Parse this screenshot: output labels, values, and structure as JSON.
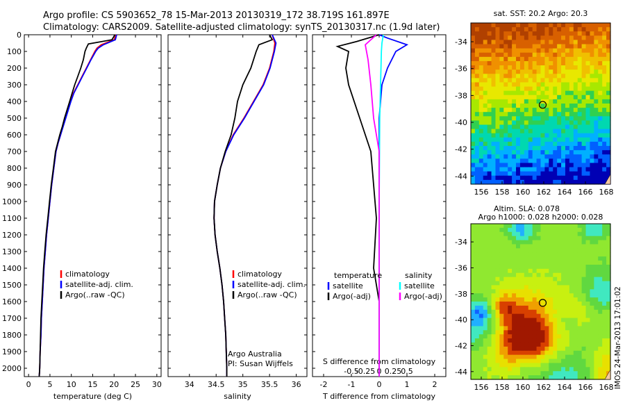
{
  "header": {
    "line1": "Argo profile: CS 5903652_78 15-Mar-2013 20130319_172 38.719S 161.897E",
    "line2": "Climatology: CARS2009. Satellite-adjusted climatology: synTS_20130317.nc (1.9d later)"
  },
  "colors": {
    "climatology": "#ff0000",
    "satellite": "#0000ff",
    "argo": "#000000",
    "salinity_sat": "#00ffff",
    "salinity_argo": "#ff00ff"
  },
  "depth_axis": {
    "ylim": [
      0,
      2050
    ],
    "ticks": [
      0,
      100,
      200,
      300,
      400,
      500,
      600,
      700,
      800,
      900,
      1000,
      1100,
      1200,
      1300,
      1400,
      1500,
      1600,
      1700,
      1800,
      1900,
      2000
    ]
  },
  "chart_data": [
    {
      "type": "line",
      "id": "temperature",
      "xlabel": "temperature (deg C)",
      "xlim": [
        -1,
        31
      ],
      "xticks": [
        0,
        5,
        10,
        15,
        20,
        25,
        30
      ],
      "legend": [
        "climatology",
        "satellite-adj. clim.",
        "Argo(..raw -QC)"
      ],
      "series": [
        {
          "name": "climatology",
          "key": "climatology",
          "points": [
            [
              20.5,
              0
            ],
            [
              20,
              30
            ],
            [
              17,
              60
            ],
            [
              16,
              80
            ],
            [
              15.5,
              100
            ],
            [
              14.5,
              150
            ],
            [
              13.5,
              200
            ],
            [
              12.5,
              250
            ],
            [
              11.5,
              300
            ],
            [
              10.5,
              350
            ],
            [
              9.8,
              400
            ],
            [
              9.2,
              450
            ],
            [
              8.6,
              500
            ],
            [
              8,
              550
            ],
            [
              7.5,
              600
            ],
            [
              6.9,
              650
            ],
            [
              6.4,
              700
            ],
            [
              5.9,
              800
            ],
            [
              5.4,
              900
            ],
            [
              5,
              1000
            ],
            [
              4.6,
              1100
            ],
            [
              4.2,
              1200
            ],
            [
              3.9,
              1300
            ],
            [
              3.6,
              1400
            ],
            [
              3.4,
              1500
            ],
            [
              3.2,
              1600
            ],
            [
              3,
              1700
            ],
            [
              2.9,
              1800
            ],
            [
              2.7,
              1900
            ],
            [
              2.6,
              2000
            ],
            [
              2.5,
              2050
            ]
          ]
        },
        {
          "name": "satellite-adj. clim.",
          "key": "satellite",
          "points": [
            [
              20.6,
              0
            ],
            [
              20.3,
              30
            ],
            [
              17.5,
              60
            ],
            [
              16.3,
              80
            ],
            [
              15.7,
              100
            ],
            [
              14.6,
              150
            ],
            [
              13.6,
              200
            ],
            [
              12.6,
              250
            ],
            [
              11.6,
              300
            ],
            [
              10.6,
              350
            ],
            [
              9.9,
              400
            ],
            [
              9.3,
              450
            ],
            [
              8.7,
              500
            ],
            [
              8.1,
              550
            ],
            [
              7.5,
              600
            ],
            [
              6.9,
              650
            ],
            [
              6.4,
              700
            ],
            [
              5.9,
              800
            ],
            [
              5.4,
              900
            ],
            [
              5,
              1000
            ],
            [
              4.6,
              1100
            ],
            [
              4.2,
              1200
            ],
            [
              3.9,
              1300
            ],
            [
              3.6,
              1400
            ],
            [
              3.4,
              1500
            ],
            [
              3.2,
              1600
            ],
            [
              3,
              1700
            ],
            [
              2.9,
              1800
            ],
            [
              2.7,
              1900
            ],
            [
              2.6,
              2000
            ],
            [
              2.5,
              2050
            ]
          ]
        },
        {
          "name": "Argo(..raw -QC)",
          "key": "argo",
          "points": [
            [
              20.2,
              0
            ],
            [
              19.5,
              30
            ],
            [
              14,
              55
            ],
            [
              13.5,
              80
            ],
            [
              13.2,
              100
            ],
            [
              12.8,
              150
            ],
            [
              12.2,
              200
            ],
            [
              11.5,
              250
            ],
            [
              10.8,
              300
            ],
            [
              10.2,
              350
            ],
            [
              9.6,
              400
            ],
            [
              9,
              450
            ],
            [
              8.4,
              500
            ],
            [
              7.9,
              550
            ],
            [
              7.3,
              600
            ],
            [
              6.8,
              650
            ],
            [
              6.3,
              700
            ],
            [
              5.8,
              800
            ],
            [
              5.3,
              900
            ],
            [
              4.9,
              1000
            ],
            [
              4.5,
              1100
            ],
            [
              4.1,
              1200
            ],
            [
              3.8,
              1300
            ],
            [
              3.5,
              1400
            ],
            [
              3.3,
              1500
            ],
            [
              3.1,
              1600
            ],
            [
              2.9,
              1700
            ],
            [
              2.8,
              1800
            ],
            [
              2.7,
              1900
            ],
            [
              2.6,
              2000
            ],
            [
              2.5,
              2050
            ]
          ]
        }
      ]
    },
    {
      "type": "line",
      "id": "salinity",
      "xlabel": "salinity",
      "xlim": [
        33.6,
        36.2
      ],
      "xticks": [
        34,
        34.5,
        35,
        35.5,
        36
      ],
      "xticklabels": [
        "34",
        "34.5",
        "35",
        "35.5",
        "36"
      ],
      "legend": [
        "climatology",
        "satellite-adj. clim.",
        "Argo(..raw -QC)"
      ],
      "annotation": [
        "Argo Australia",
        "PI: Susan Wijffels"
      ],
      "series": [
        {
          "name": "climatology",
          "key": "climatology",
          "points": [
            [
              35.55,
              0
            ],
            [
              35.6,
              50
            ],
            [
              35.58,
              100
            ],
            [
              35.5,
              200
            ],
            [
              35.38,
              300
            ],
            [
              35.2,
              400
            ],
            [
              35.02,
              500
            ],
            [
              34.82,
              600
            ],
            [
              34.68,
              700
            ],
            [
              34.58,
              800
            ],
            [
              34.52,
              900
            ],
            [
              34.47,
              1000
            ],
            [
              34.46,
              1100
            ],
            [
              34.48,
              1200
            ],
            [
              34.52,
              1300
            ],
            [
              34.57,
              1400
            ],
            [
              34.61,
              1500
            ],
            [
              34.64,
              1600
            ],
            [
              34.66,
              1700
            ],
            [
              34.68,
              1800
            ],
            [
              34.69,
              1900
            ],
            [
              34.7,
              2000
            ],
            [
              34.7,
              2050
            ]
          ]
        },
        {
          "name": "satellite-adj. clim.",
          "key": "satellite",
          "points": [
            [
              35.55,
              0
            ],
            [
              35.62,
              50
            ],
            [
              35.59,
              100
            ],
            [
              35.51,
              200
            ],
            [
              35.39,
              300
            ],
            [
              35.21,
              400
            ],
            [
              35.03,
              500
            ],
            [
              34.83,
              600
            ],
            [
              34.68,
              700
            ],
            [
              34.58,
              800
            ],
            [
              34.52,
              900
            ],
            [
              34.47,
              1000
            ],
            [
              34.46,
              1100
            ],
            [
              34.48,
              1200
            ],
            [
              34.52,
              1300
            ],
            [
              34.57,
              1400
            ],
            [
              34.61,
              1500
            ],
            [
              34.64,
              1600
            ],
            [
              34.66,
              1700
            ],
            [
              34.68,
              1800
            ],
            [
              34.69,
              1900
            ],
            [
              34.7,
              2000
            ],
            [
              34.7,
              2050
            ]
          ]
        },
        {
          "name": "Argo(..raw -QC)",
          "key": "argo",
          "points": [
            [
              35.5,
              0
            ],
            [
              35.55,
              30
            ],
            [
              35.3,
              60
            ],
            [
              35.25,
              100
            ],
            [
              35.15,
              200
            ],
            [
              35,
              300
            ],
            [
              34.9,
              400
            ],
            [
              34.85,
              500
            ],
            [
              34.78,
              600
            ],
            [
              34.67,
              700
            ],
            [
              34.58,
              800
            ],
            [
              34.52,
              900
            ],
            [
              34.47,
              1000
            ],
            [
              34.46,
              1100
            ],
            [
              34.48,
              1200
            ],
            [
              34.52,
              1300
            ],
            [
              34.57,
              1400
            ],
            [
              34.61,
              1500
            ],
            [
              34.64,
              1600
            ],
            [
              34.66,
              1700
            ],
            [
              34.68,
              1800
            ],
            [
              34.69,
              1900
            ],
            [
              34.7,
              2000
            ],
            [
              34.7,
              2050
            ]
          ]
        }
      ]
    },
    {
      "type": "line",
      "id": "difference",
      "xlabel": "T difference from climatology",
      "xlabel2": "S difference from climatology",
      "xlim": [
        -2.4,
        2.4
      ],
      "xticks": [
        -2,
        -1,
        0,
        1,
        2
      ],
      "xticklabels": [
        "-2",
        "-1",
        "0",
        "1",
        "2"
      ],
      "xticks2": [
        -1,
        -0.5,
        0,
        0.5,
        1
      ],
      "xticklabels2": [
        "-0.5",
        "-0.25",
        "0",
        "0.25",
        "0.5"
      ],
      "legend_t": {
        "title": "temperature",
        "items": [
          "satellite",
          "Argo(-adj)"
        ]
      },
      "legend_s": {
        "title": "salinity",
        "items": [
          "satellite",
          "Argo(-adj)"
        ]
      },
      "series": [
        {
          "name": "satellite",
          "key": "satellite",
          "points": [
            [
              0,
              0
            ],
            [
              0.3,
              20
            ],
            [
              1,
              60
            ],
            [
              0.6,
              100
            ],
            [
              0.3,
              200
            ],
            [
              0.1,
              300
            ],
            [
              0,
              500
            ],
            [
              0,
              1000
            ],
            [
              0,
              1500
            ],
            [
              0,
              2000
            ],
            [
              0,
              2050
            ]
          ]
        },
        {
          "name": "Argo(-adj)",
          "key": "argo",
          "points": [
            [
              0,
              0
            ],
            [
              -0.8,
              40
            ],
            [
              -1.5,
              70
            ],
            [
              -1.1,
              100
            ],
            [
              -1.2,
              200
            ],
            [
              -1.1,
              300
            ],
            [
              -0.8,
              450
            ],
            [
              -0.5,
              600
            ],
            [
              -0.3,
              700
            ],
            [
              -0.2,
              900
            ],
            [
              -0.1,
              1100
            ],
            [
              -0.2,
              1400
            ],
            [
              0,
              1600
            ],
            [
              0,
              2050
            ]
          ]
        },
        {
          "name": "satellite",
          "key": "salinity_sat",
          "points": [
            [
              0.15,
              0
            ],
            [
              0.1,
              50
            ],
            [
              0.08,
              100
            ],
            [
              0.05,
              300
            ],
            [
              0.02,
              500
            ],
            [
              0,
              1000
            ],
            [
              0,
              2050
            ]
          ]
        },
        {
          "name": "Argo(-adj)",
          "key": "salinity_argo",
          "points": [
            [
              -0.1,
              0
            ],
            [
              -0.5,
              60
            ],
            [
              -0.4,
              150
            ],
            [
              -0.3,
              300
            ],
            [
              -0.25,
              400
            ],
            [
              -0.2,
              500
            ],
            [
              0,
              700
            ],
            [
              0,
              2050
            ]
          ]
        }
      ]
    }
  ],
  "maps": [
    {
      "id": "sst",
      "title": "sat. SST: 20.2  Argo: 20.3",
      "xlim": [
        155,
        168.4
      ],
      "ylim": [
        -44.6,
        -32.6
      ],
      "xticks": [
        156,
        158,
        160,
        162,
        164,
        166,
        168
      ],
      "yticks": [
        -34,
        -36,
        -38,
        -40,
        -42,
        -44
      ],
      "marker": {
        "lon": 161.9,
        "lat": -38.7
      }
    },
    {
      "id": "sla",
      "title": "Altim. SLA: 0.078",
      "title2": "Argo h1000: 0.028 h2000: 0.028",
      "xlim": [
        155,
        168.4
      ],
      "ylim": [
        -44.6,
        -32.6
      ],
      "xticks": [
        156,
        158,
        160,
        162,
        164,
        166,
        168
      ],
      "yticks": [
        -34,
        -36,
        -38,
        -40,
        -42,
        -44
      ],
      "marker": {
        "lon": 161.9,
        "lat": -38.7
      }
    }
  ],
  "footer": {
    "credit": "IMOS 24-Mar-2013 17:01:02"
  }
}
